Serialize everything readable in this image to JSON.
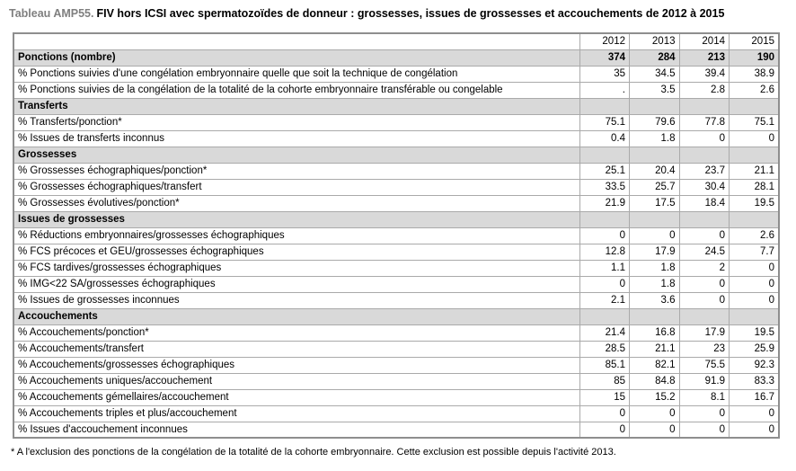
{
  "title": {
    "prefix": "Tableau AMP55.",
    "text": "FIV hors ICSI avec spermatozoïdes de donneur : grossesses, issues de grossesses et accouchements de 2012 à 2015"
  },
  "table": {
    "year_headers": [
      "2012",
      "2013",
      "2014",
      "2015"
    ],
    "rows": [
      {
        "type": "section-values",
        "label": "Ponctions (nombre)",
        "values": [
          "374",
          "284",
          "213",
          "190"
        ]
      },
      {
        "type": "data",
        "label": "% Ponctions suivies d'une congélation embryonnaire quelle que soit la technique de congélation",
        "values": [
          "35",
          "34.5",
          "39.4",
          "38.9"
        ]
      },
      {
        "type": "data",
        "label": "% Ponctions suivies de la congélation de la totalité de la cohorte embryonnaire transférable ou congelable",
        "values": [
          ".",
          "3.5",
          "2.8",
          "2.6"
        ]
      },
      {
        "type": "section",
        "label": "Transferts",
        "values": [
          "",
          "",
          "",
          ""
        ]
      },
      {
        "type": "data",
        "label": "% Transferts/ponction*",
        "values": [
          "75.1",
          "79.6",
          "77.8",
          "75.1"
        ]
      },
      {
        "type": "data",
        "label": "% Issues de transferts inconnus",
        "values": [
          "0.4",
          "1.8",
          "0",
          "0"
        ]
      },
      {
        "type": "section",
        "label": "Grossesses",
        "values": [
          "",
          "",
          "",
          ""
        ]
      },
      {
        "type": "data",
        "label": "% Grossesses échographiques/ponction*",
        "values": [
          "25.1",
          "20.4",
          "23.7",
          "21.1"
        ]
      },
      {
        "type": "data",
        "label": "% Grossesses échographiques/transfert",
        "values": [
          "33.5",
          "25.7",
          "30.4",
          "28.1"
        ]
      },
      {
        "type": "data",
        "label": "% Grossesses évolutives/ponction*",
        "values": [
          "21.9",
          "17.5",
          "18.4",
          "19.5"
        ]
      },
      {
        "type": "section",
        "label": "Issues de grossesses",
        "values": [
          "",
          "",
          "",
          ""
        ]
      },
      {
        "type": "data",
        "label": "% Réductions embryonnaires/grossesses échographiques",
        "values": [
          "0",
          "0",
          "0",
          "2.6"
        ]
      },
      {
        "type": "data",
        "label": "% FCS précoces et GEU/grossesses échographiques",
        "values": [
          "12.8",
          "17.9",
          "24.5",
          "7.7"
        ]
      },
      {
        "type": "data",
        "label": "% FCS tardives/grossesses échographiques",
        "values": [
          "1.1",
          "1.8",
          "2",
          "0"
        ]
      },
      {
        "type": "data",
        "label": "% IMG<22 SA/grossesses échographiques",
        "values": [
          "0",
          "1.8",
          "0",
          "0"
        ]
      },
      {
        "type": "data",
        "label": "% Issues de grossesses inconnues",
        "values": [
          "2.1",
          "3.6",
          "0",
          "0"
        ]
      },
      {
        "type": "section",
        "label": "Accouchements",
        "values": [
          "",
          "",
          "",
          ""
        ]
      },
      {
        "type": "data",
        "label": "% Accouchements/ponction*",
        "values": [
          "21.4",
          "16.8",
          "17.9",
          "19.5"
        ]
      },
      {
        "type": "data",
        "label": "% Accouchements/transfert",
        "values": [
          "28.5",
          "21.1",
          "23",
          "25.9"
        ]
      },
      {
        "type": "data",
        "label": "% Accouchements/grossesses échographiques",
        "values": [
          "85.1",
          "82.1",
          "75.5",
          "92.3"
        ]
      },
      {
        "type": "data",
        "label": "% Accouchements uniques/accouchement",
        "values": [
          "85",
          "84.8",
          "91.9",
          "83.3"
        ]
      },
      {
        "type": "data",
        "label": "% Accouchements gémellaires/accouchement",
        "values": [
          "15",
          "15.2",
          "8.1",
          "16.7"
        ]
      },
      {
        "type": "data",
        "label": "% Accouchements triples et plus/accouchement",
        "values": [
          "0",
          "0",
          "0",
          "0"
        ]
      },
      {
        "type": "data",
        "label": "% Issues d'accouchement inconnues",
        "values": [
          "0",
          "0",
          "0",
          "0"
        ]
      }
    ]
  },
  "footnote": "* A l'exclusion des ponctions de la congélation de la totalité de la cohorte embryonnaire. Cette exclusion est possible depuis l'activité 2013.",
  "colors": {
    "section_row_bg": "#d9d9d9",
    "border_inner": "#aaaaaa",
    "border_outer": "#8e8e8e",
    "title_prefix": "#7f7f7f",
    "text": "#000000"
  }
}
